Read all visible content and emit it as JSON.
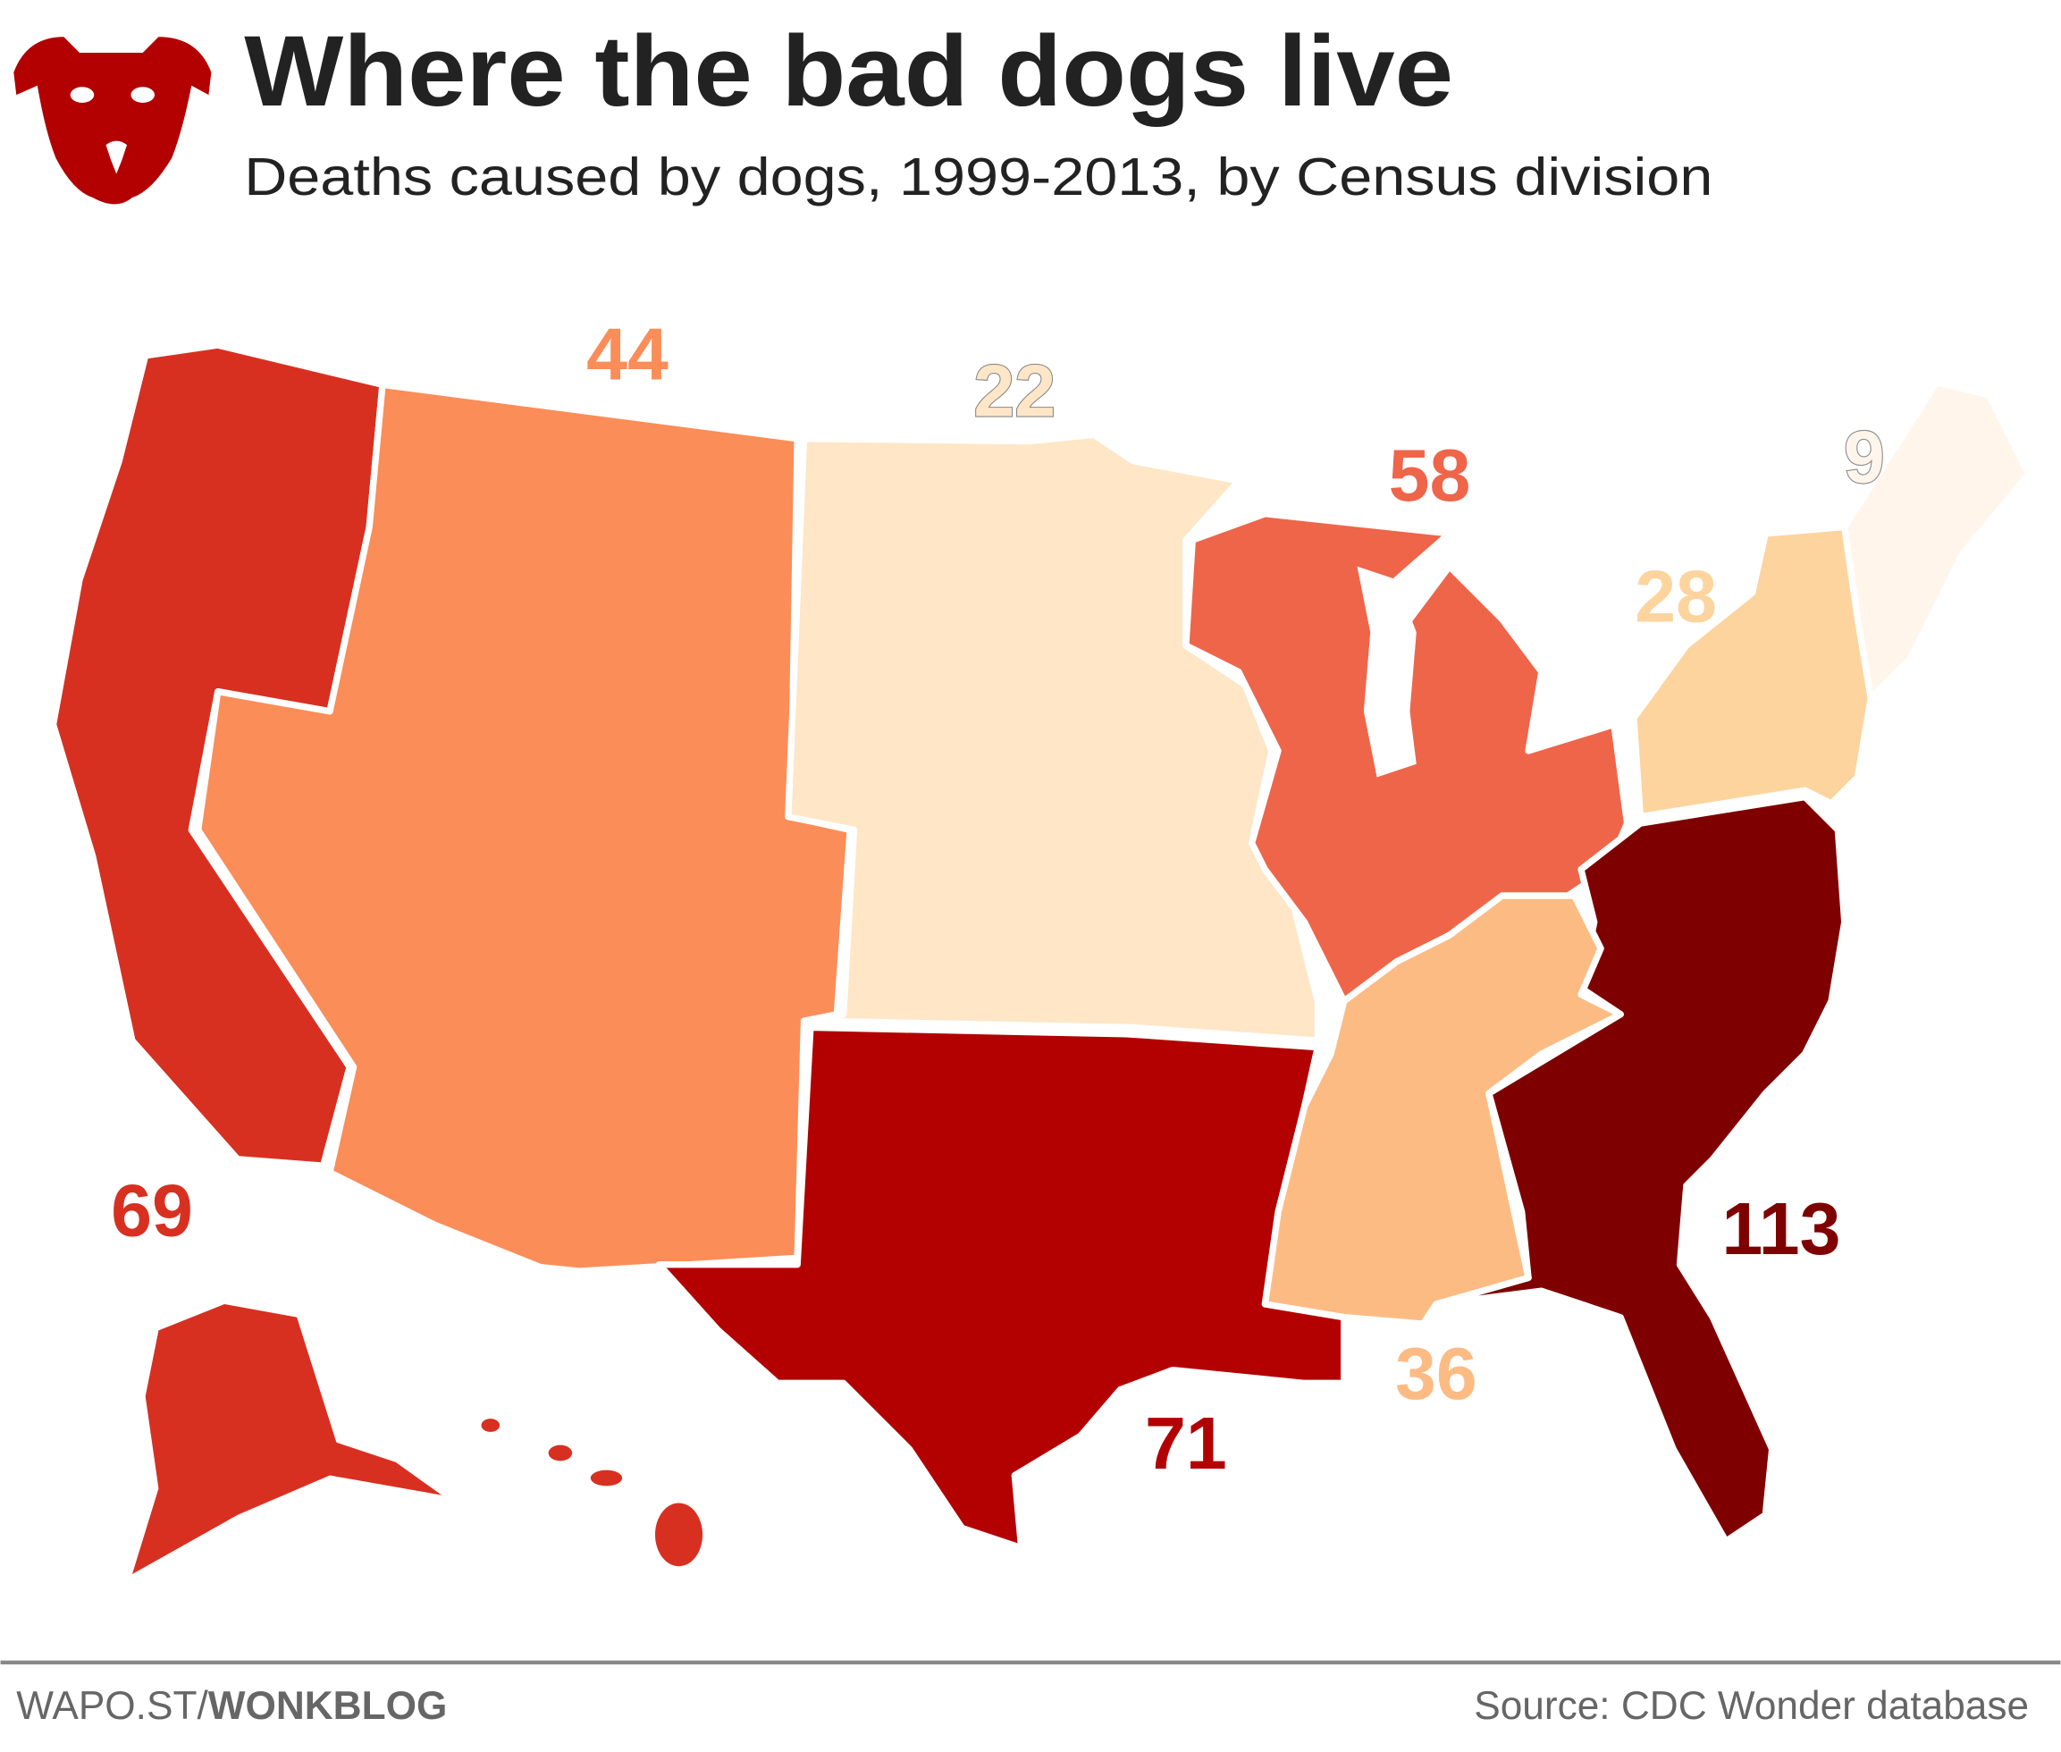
{
  "header": {
    "title": "Where the bad dogs live",
    "subtitle": "Deaths caused by dogs, 1999-2013, by Census division",
    "logo_icon": "dog-head-icon",
    "logo_color": "#b30000"
  },
  "footer": {
    "site_prefix": "WAPO.ST/",
    "site_bold": "WONKBLOG",
    "source": "Source: CDC Wonder database"
  },
  "chart_data": {
    "type": "map",
    "title": "Where the bad dogs live",
    "subtitle": "Deaths caused by dogs, 1999-2013, by Census division",
    "regions": [
      {
        "division": "Pacific",
        "value": 69,
        "label": "69",
        "color": "#d73021"
      },
      {
        "division": "Mountain",
        "value": 44,
        "label": "44",
        "color": "#fb8d59"
      },
      {
        "division": "West North Central",
        "value": 22,
        "label": "22",
        "color": "#fee6c6"
      },
      {
        "division": "East North Central",
        "value": 58,
        "label": "58",
        "color": "#ef654a"
      },
      {
        "division": "New England",
        "value": 9,
        "label": "9",
        "color": "#fff5eb"
      },
      {
        "division": "Middle Atlantic",
        "value": 28,
        "label": "28",
        "color": "#fdd49e"
      },
      {
        "division": "South Atlantic",
        "value": 113,
        "label": "113",
        "color": "#7f0000"
      },
      {
        "division": "East South Central",
        "value": 36,
        "label": "36",
        "color": "#fdbb84"
      },
      {
        "division": "West South Central",
        "value": 71,
        "label": "71",
        "color": "#b30000"
      }
    ]
  }
}
